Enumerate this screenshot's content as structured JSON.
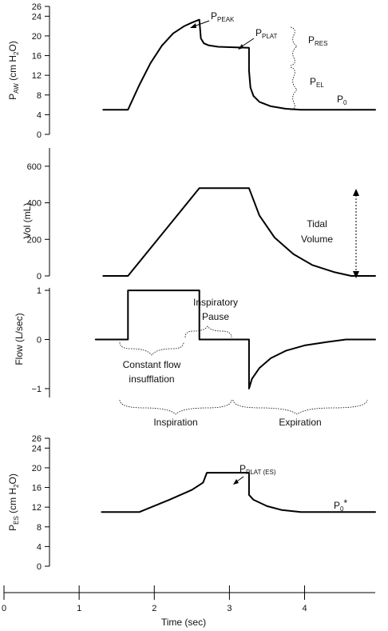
{
  "chart_data": [
    {
      "type": "line",
      "name": "airway-pressure",
      "ylabel": {
        "main": "P",
        "sub": "AW",
        "rest": " (cm H",
        "sub2": "2",
        "rest2": "O)"
      },
      "ylim": [
        0,
        26
      ],
      "yticks": [
        0,
        4,
        8,
        12,
        16,
        20,
        24,
        26
      ],
      "xlim": [
        0,
        4.94
      ],
      "series": [
        {
          "x": [
            1.32,
            1.65,
            1.8,
            1.95,
            2.1,
            2.25,
            2.4,
            2.5,
            2.6,
            2.62,
            2.66,
            2.72,
            2.85,
            3.05,
            3.26,
            3.26,
            3.28,
            3.32,
            3.4,
            3.55,
            3.75,
            3.95,
            4.94
          ],
          "y": [
            5,
            5,
            10,
            14.5,
            18,
            20.5,
            22,
            22.7,
            23.3,
            19.5,
            18.5,
            18.1,
            17.8,
            17.7,
            17.6,
            13,
            9.5,
            7.8,
            6.6,
            5.7,
            5.2,
            5,
            5
          ]
        }
      ],
      "annotations": [
        {
          "main": "P",
          "sub": "PEAK"
        },
        {
          "main": "P",
          "sub": "PLAT"
        },
        {
          "main": "P",
          "sub": "RES"
        },
        {
          "main": "P",
          "sub": "EL"
        },
        {
          "main": "P",
          "sub": "0"
        }
      ]
    },
    {
      "type": "line",
      "name": "volume",
      "ylabel": "Vol (mL)",
      "ylim": [
        0,
        700
      ],
      "yticks": [
        0,
        200,
        400,
        600
      ],
      "xlim": [
        0,
        4.94
      ],
      "series": [
        {
          "x": [
            1.32,
            1.65,
            2.6,
            3.26,
            3.4,
            3.6,
            3.85,
            4.1,
            4.4,
            4.62,
            4.94
          ],
          "y": [
            0,
            0,
            480,
            480,
            330,
            210,
            120,
            60,
            20,
            0,
            0
          ]
        }
      ],
      "annotations": [
        {
          "line1": "Tidal",
          "line2": "Volume"
        }
      ]
    },
    {
      "type": "line",
      "name": "flow",
      "ylabel": "Flow (L/sec)",
      "ylim": [
        -1.18,
        1.05
      ],
      "yticks": [
        -1,
        0,
        1
      ],
      "tick_labels": [
        "−1",
        "0",
        "1"
      ],
      "xlim": [
        0,
        4.94
      ],
      "series": [
        {
          "x": [
            1.22,
            1.65,
            1.65,
            2.6,
            2.6,
            3.26,
            3.26,
            3.3,
            3.4,
            3.55,
            3.75,
            4.0,
            4.3,
            4.55,
            4.94
          ],
          "y": [
            0,
            0,
            1,
            1,
            0,
            0,
            -1,
            -0.8,
            -0.58,
            -0.38,
            -0.23,
            -0.12,
            -0.05,
            0,
            0
          ]
        }
      ],
      "annotations": [
        {
          "line1": "Inspiratory",
          "line2": "Pause"
        },
        {
          "line1": "Constant flow",
          "line2": "insufflation"
        },
        {
          "label": "Inspiration"
        },
        {
          "label": "Expiration"
        }
      ]
    },
    {
      "type": "line",
      "name": "esophageal-pressure",
      "ylabel": {
        "main": "P",
        "sub": "ES",
        "rest": " (cm H",
        "sub2": "2",
        "rest2": "O)"
      },
      "ylim": [
        0,
        26
      ],
      "yticks": [
        0,
        4,
        8,
        12,
        16,
        20,
        24,
        26
      ],
      "xlim": [
        0,
        4.94
      ],
      "series": [
        {
          "x": [
            1.3,
            1.8,
            2.2,
            2.5,
            2.65,
            2.7,
            3.26,
            3.26,
            3.32,
            3.5,
            3.7,
            3.95,
            4.94
          ],
          "y": [
            11,
            11,
            13.5,
            15.5,
            17,
            19,
            19,
            14.5,
            13.5,
            12.2,
            11.4,
            11,
            11
          ]
        }
      ],
      "annotations": [
        {
          "main": "P",
          "sub": "PLAT (ES)"
        },
        {
          "main": "P",
          "sub": "0",
          "suffix": "*"
        }
      ]
    }
  ],
  "time_axis": {
    "xlabel": "Time (sec)",
    "xlim": [
      0,
      4.94
    ],
    "ticks": [
      0,
      1,
      2,
      3,
      4
    ],
    "tick_labels": [
      "0",
      "1",
      "2",
      "3",
      "4"
    ]
  }
}
